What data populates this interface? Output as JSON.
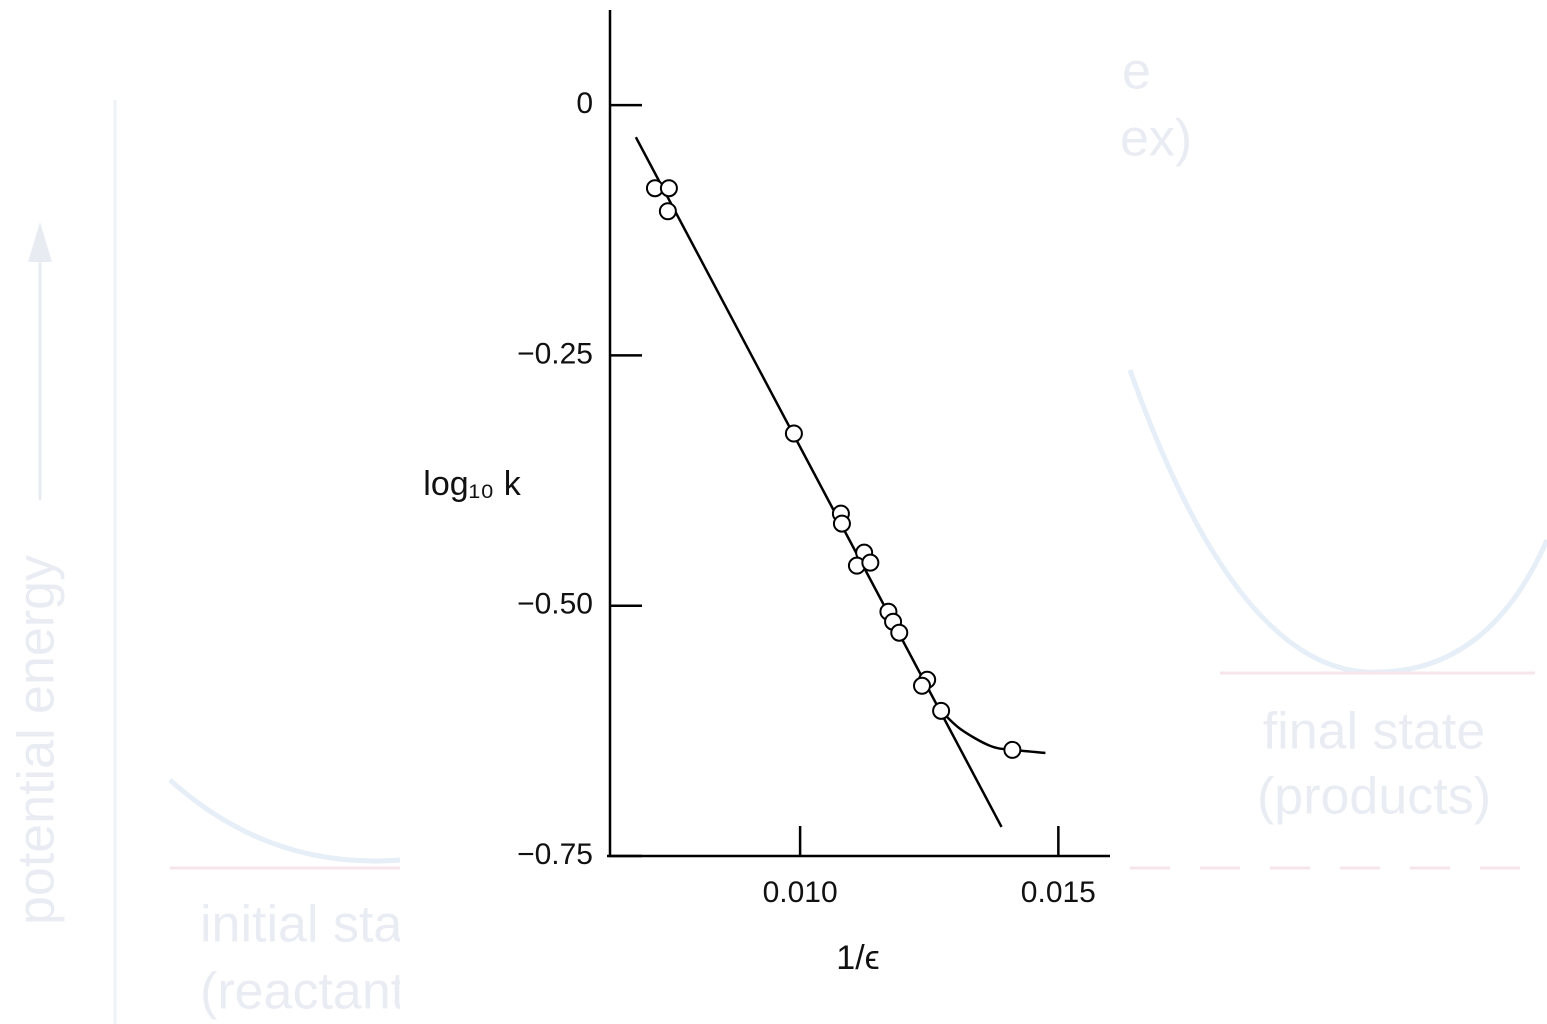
{
  "chart_data": {
    "type": "scatter",
    "x_label": "1/ϵ",
    "y_label": "log₁₀ k",
    "x": [
      0.00719,
      0.00746,
      0.00744,
      0.00988,
      0.01079,
      0.01081,
      0.01124,
      0.0111,
      0.01136,
      0.01171,
      0.0118,
      0.01192,
      0.01246,
      0.01236,
      0.01273,
      0.01411
    ],
    "values": [
      -0.083,
      -0.083,
      -0.106,
      -0.328,
      -0.408,
      -0.418,
      -0.447,
      -0.46,
      -0.457,
      -0.506,
      -0.516,
      -0.527,
      -0.574,
      -0.58,
      -0.605,
      -0.644
    ],
    "lines": [
      {
        "x": [
          0.00682,
          0.0139
        ],
        "values": [
          -0.032,
          -0.721
        ]
      },
      {
        "x": [
          0.01273,
          0.0131,
          0.01368,
          0.01411,
          0.01475
        ],
        "values": [
          -0.605,
          -0.623,
          -0.64,
          -0.644,
          -0.647
        ]
      }
    ],
    "color": "#000000",
    "xlim": [
      0.0063,
      0.016
    ],
    "ylim": [
      -0.75,
      0.095
    ],
    "xticks": [
      {
        "value": 0.01,
        "label": "0.010"
      },
      {
        "value": 0.015,
        "label": "0.015"
      }
    ],
    "yticks": [
      {
        "value": -0.75,
        "label": "−0.75"
      },
      {
        "value": -0.5,
        "label": "−0.50"
      },
      {
        "value": -0.25,
        "label": "−0.25"
      },
      0
    ]
  },
  "background": {
    "y_label": "potential energy",
    "initial": [
      "initial state",
      "(reactants)"
    ],
    "final": [
      "final state",
      "(products)"
    ],
    "complex": [
      "e",
      "ex)"
    ]
  }
}
